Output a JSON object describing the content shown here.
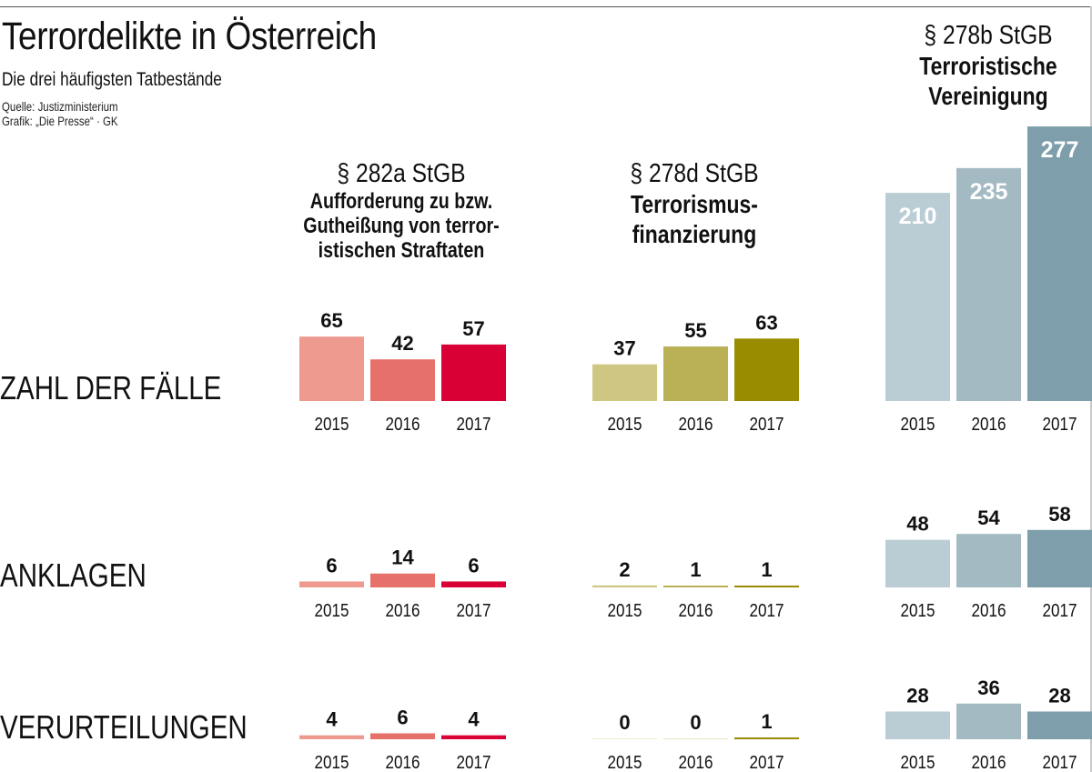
{
  "header": {
    "title": "Terrordelikte in Österreich",
    "subtitle": "Die drei häufigsten Tatbestände",
    "source": "Quelle: Justizministerium",
    "credit": "Grafik: „Die Presse“ · GK"
  },
  "rows": [
    {
      "label": "ZAHL DER FÄLLE"
    },
    {
      "label": "ANKLAGEN"
    },
    {
      "label": "VERURTEILUNGEN"
    }
  ],
  "panels": [
    {
      "paragraph": "§ 282a StGB",
      "name_lines": [
        "Aufforderung zu bzw.",
        "Gutheißung von terror-",
        "istischen Straftaten"
      ]
    },
    {
      "paragraph": "§ 278d StGB",
      "name_lines": [
        "Terrorismus-",
        "finanzierung"
      ]
    },
    {
      "paragraph": "§ 278b StGB",
      "name_lines": [
        "Terroristische",
        "Vereinigung"
      ]
    }
  ],
  "chart_data": {
    "type": "bar",
    "title": "Terrordelikte in Österreich",
    "subtitle": "Die drei häufigsten Tatbestände",
    "categories": [
      "2015",
      "2016",
      "2017"
    ],
    "metrics": [
      "ZAHL DER FÄLLE",
      "ANKLAGEN",
      "VERURTEILUNGEN"
    ],
    "groups": [
      {
        "name": "§ 282a StGB – Aufforderung zu bzw. Gutheißung von terroristischen Straftaten",
        "colors": [
          "#ee9a8f",
          "#e6706a",
          "#d90036"
        ],
        "series": [
          {
            "name": "ZAHL DER FÄLLE",
            "values": [
              65,
              42,
              57
            ]
          },
          {
            "name": "ANKLAGEN",
            "values": [
              6,
              14,
              6
            ]
          },
          {
            "name": "VERURTEILUNGEN",
            "values": [
              4,
              6,
              4
            ]
          }
        ]
      },
      {
        "name": "§ 278d StGB – Terrorismusfinanzierung",
        "colors": [
          "#cfc684",
          "#bab055",
          "#9a8c00"
        ],
        "series": [
          {
            "name": "ZAHL DER FÄLLE",
            "values": [
              37,
              55,
              63
            ]
          },
          {
            "name": "ANKLAGEN",
            "values": [
              2,
              1,
              1
            ]
          },
          {
            "name": "VERURTEILUNGEN",
            "values": [
              0,
              0,
              1
            ]
          }
        ]
      },
      {
        "name": "§ 278b StGB – Terroristische Vereinigung",
        "colors": [
          "#bacdd4",
          "#a3bac2",
          "#7d9eaa"
        ],
        "series": [
          {
            "name": "ZAHL DER FÄLLE",
            "values": [
              210,
              235,
              277
            ]
          },
          {
            "name": "ANKLAGEN",
            "values": [
              48,
              54,
              58
            ]
          },
          {
            "name": "VERURTEILUNGEN",
            "values": [
              28,
              36,
              28
            ]
          }
        ]
      }
    ],
    "value_labels_inside": [
      false,
      false,
      true
    ],
    "grid": false,
    "legend": "none"
  }
}
